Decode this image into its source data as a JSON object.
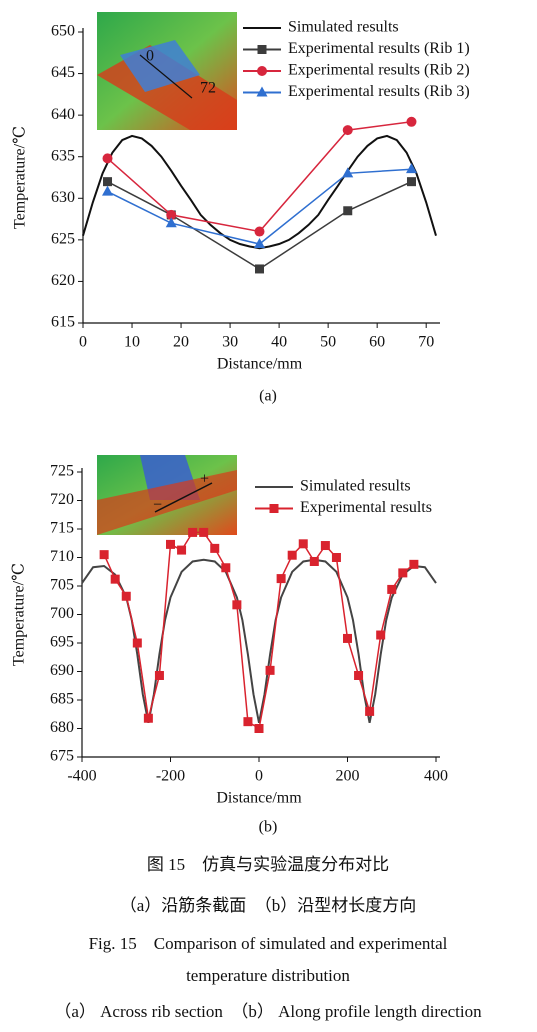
{
  "chart_data": [
    {
      "type": "line",
      "label": "(a)",
      "xlabel": "Distance/mm",
      "ylabel": "Temperature/℃",
      "xlim": [
        0,
        72
      ],
      "ylim": [
        615,
        650
      ],
      "xticks": [
        0,
        10,
        20,
        30,
        40,
        50,
        60,
        70
      ],
      "yticks": [
        615,
        620,
        625,
        630,
        635,
        640,
        645,
        650
      ],
      "legend": "upper right",
      "inset_labels": [
        "0",
        "72"
      ],
      "series": [
        {
          "name": "Simulated results",
          "color": "#111111",
          "marker": "none",
          "x": [
            0,
            2,
            4,
            6,
            8,
            10,
            12,
            14,
            16,
            18,
            20,
            22,
            24,
            26,
            28,
            30,
            32,
            34,
            36,
            38,
            40,
            42,
            44,
            46,
            48,
            50,
            52,
            54,
            56,
            58,
            60,
            62,
            64,
            66,
            68,
            70,
            72
          ],
          "values": [
            625.5,
            629.5,
            633,
            635.5,
            637,
            637.5,
            637.2,
            636.3,
            635,
            633.3,
            631.5,
            629.8,
            628,
            626.8,
            625.8,
            625,
            624.5,
            624.2,
            624,
            624.2,
            624.5,
            625,
            625.8,
            626.8,
            628,
            629.8,
            631.5,
            633.3,
            635,
            636.3,
            637.2,
            637.5,
            637,
            635.5,
            633,
            629.5,
            625.5
          ]
        },
        {
          "name": "Experimental results (Rib 1)",
          "color": "#3c3c3c",
          "marker": "square",
          "x": [
            5,
            18,
            36,
            54,
            67
          ],
          "values": [
            632,
            628,
            621.5,
            628.5,
            632
          ]
        },
        {
          "name": "Experimental results (Rib 2)",
          "color": "#d7263d",
          "marker": "circle",
          "x": [
            5,
            18,
            36,
            54,
            67
          ],
          "values": [
            634.8,
            628,
            626,
            638.2,
            639.2
          ]
        },
        {
          "name": "Experimental results (Rib 3)",
          "color": "#2f6fd0",
          "marker": "triangle",
          "x": [
            5,
            18,
            36,
            54,
            67
          ],
          "values": [
            630.8,
            627,
            624.5,
            633,
            633.5
          ]
        }
      ]
    },
    {
      "type": "line",
      "label": "(b)",
      "xlabel": "Distance/mm",
      "ylabel": "Temperature/℃",
      "xlim": [
        -400,
        400
      ],
      "ylim": [
        675,
        725
      ],
      "xticks": [
        -400,
        -200,
        0,
        200,
        400
      ],
      "yticks": [
        675,
        680,
        685,
        690,
        695,
        700,
        705,
        710,
        715,
        720,
        725
      ],
      "legend": "upper right",
      "inset_labels": [
        "+",
        "−"
      ],
      "series": [
        {
          "name": "Simulated results",
          "color": "#444444",
          "marker": "none",
          "x": [
            -400,
            -375,
            -350,
            -325,
            -300,
            -287.5,
            -275,
            -262.5,
            -250,
            -237.5,
            -225,
            -212.5,
            -200,
            -175,
            -150,
            -125,
            -100,
            -75,
            -50,
            -37.5,
            -25,
            -12.5,
            0,
            12.5,
            25,
            37.5,
            50,
            75,
            100,
            125,
            150,
            175,
            200,
            212.5,
            225,
            237.5,
            250,
            262.5,
            275,
            287.5,
            300,
            325,
            350,
            375,
            400
          ],
          "values": [
            705.5,
            708.3,
            708.5,
            707,
            703,
            699,
            693,
            686,
            681,
            686,
            693,
            699,
            703,
            707.5,
            709.3,
            709.6,
            709.3,
            707.5,
            703,
            699,
            693,
            686,
            681,
            686,
            693,
            699,
            703,
            707.5,
            709.3,
            709.6,
            709.3,
            707.5,
            703,
            699,
            693,
            686,
            681,
            686,
            693,
            699,
            703,
            707,
            708.5,
            708.3,
            705.5
          ]
        },
        {
          "name": "Experimental results",
          "color": "#d9232e",
          "marker": "square",
          "x": [
            -350,
            -325,
            -300,
            -275,
            -250,
            -225,
            -200,
            -175,
            -150,
            -125,
            -100,
            -75,
            -50,
            -25,
            0,
            25,
            50,
            75,
            100,
            125,
            150,
            175,
            200,
            225,
            250,
            275,
            300,
            325,
            350
          ],
          "values": [
            710.5,
            706.2,
            703.2,
            695,
            681.8,
            689.3,
            712.3,
            711.3,
            714.4,
            714.4,
            711.6,
            708.2,
            701.7,
            681.2,
            680,
            690.2,
            706.3,
            710.4,
            712.4,
            709.3,
            712.1,
            710,
            695.8,
            689.3,
            683,
            696.4,
            704.4,
            707.3,
            708.8
          ]
        }
      ]
    }
  ],
  "caption": {
    "lines": [
      "图 15　仿真与实验温度分布对比",
      "（a）沿筋条截面　（b）沿型材长度方向",
      "Fig. 15　Comparison of simulated and experimental",
      "temperature distribution",
      "（a） Across rib section　（b） Along profile length direction"
    ]
  }
}
